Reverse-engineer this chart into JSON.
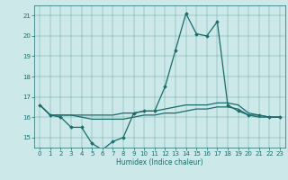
{
  "title": "",
  "xlabel": "Humidex (Indice chaleur)",
  "xlim": [
    -0.5,
    23.5
  ],
  "ylim": [
    14.5,
    21.5
  ],
  "yticks": [
    15,
    16,
    17,
    18,
    19,
    20,
    21
  ],
  "xticks": [
    0,
    1,
    2,
    3,
    4,
    5,
    6,
    7,
    8,
    9,
    10,
    11,
    12,
    13,
    14,
    15,
    16,
    17,
    18,
    19,
    20,
    21,
    22,
    23
  ],
  "bg_color": "#cce8e8",
  "line_color": "#1a6b6b",
  "line1_x": [
    0,
    1,
    2,
    3,
    4,
    5,
    6,
    7,
    8,
    9,
    10,
    11,
    12,
    13,
    14,
    15,
    16,
    17,
    18,
    19,
    20,
    21,
    22,
    23
  ],
  "line1_y": [
    16.6,
    16.1,
    16.0,
    15.5,
    15.5,
    14.7,
    14.4,
    14.8,
    15.0,
    16.2,
    16.3,
    16.3,
    17.5,
    19.3,
    21.1,
    20.1,
    20.0,
    20.7,
    16.6,
    16.3,
    16.1,
    16.1,
    16.0,
    16.0
  ],
  "line2_x": [
    0,
    1,
    2,
    3,
    4,
    5,
    6,
    7,
    8,
    9,
    10,
    11,
    12,
    13,
    14,
    15,
    16,
    17,
    18,
    19,
    20,
    21,
    22,
    23
  ],
  "line2_y": [
    16.6,
    16.1,
    16.1,
    16.1,
    16.1,
    16.1,
    16.1,
    16.1,
    16.2,
    16.2,
    16.3,
    16.3,
    16.4,
    16.5,
    16.6,
    16.6,
    16.6,
    16.7,
    16.7,
    16.6,
    16.2,
    16.1,
    16.0,
    16.0
  ],
  "line3_x": [
    0,
    1,
    2,
    3,
    4,
    5,
    6,
    7,
    8,
    9,
    10,
    11,
    12,
    13,
    14,
    15,
    16,
    17,
    18,
    19,
    20,
    21,
    22,
    23
  ],
  "line3_y": [
    16.6,
    16.1,
    16.1,
    16.1,
    16.0,
    15.9,
    15.9,
    15.9,
    15.9,
    16.0,
    16.1,
    16.1,
    16.2,
    16.2,
    16.3,
    16.4,
    16.4,
    16.5,
    16.5,
    16.4,
    16.1,
    16.0,
    16.0,
    16.0
  ]
}
